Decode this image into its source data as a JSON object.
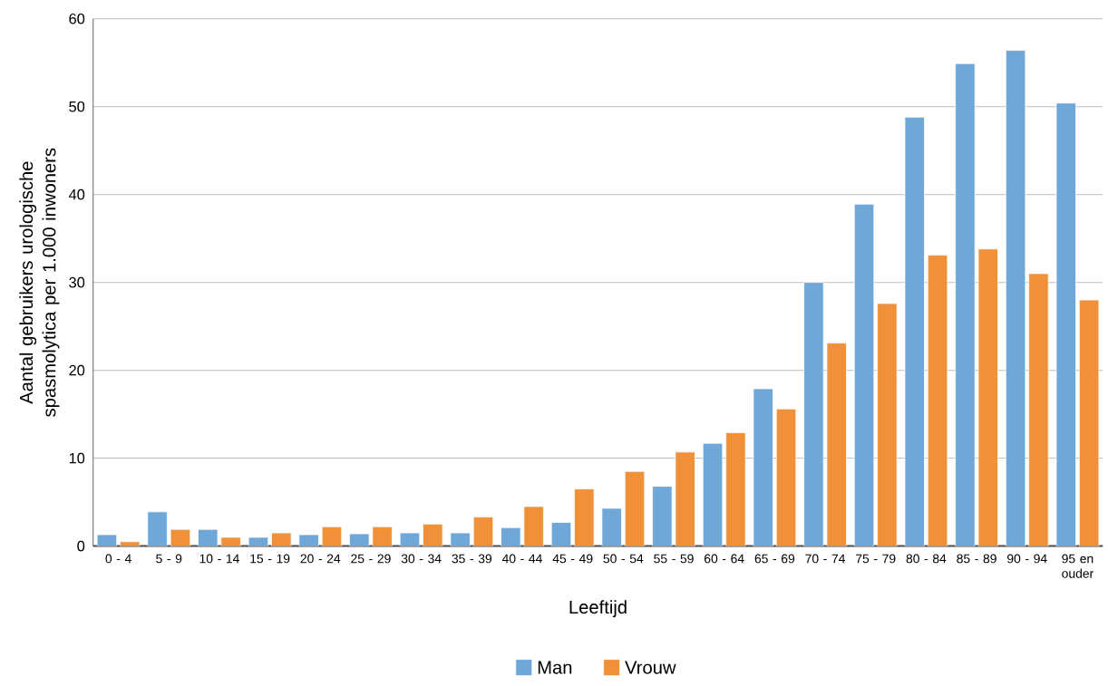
{
  "chart_data": {
    "type": "bar",
    "xlabel": "Leeftijd",
    "ylabel": "Aantal gebruikers urologische spasmolytica per 1.000 inwoners",
    "categories": [
      "0 - 4",
      "5 - 9",
      "10 - 14",
      "15 - 19",
      "20 - 24",
      "25 - 29",
      "30 - 34",
      "35 - 39",
      "40 - 44",
      "45 - 49",
      "50 - 54",
      "55 - 59",
      "60 - 64",
      "65 - 69",
      "70 - 74",
      "75 - 79",
      "80 - 84",
      "85 - 89",
      "90 - 94",
      "95 en ouder"
    ],
    "series": [
      {
        "name": "Man",
        "color": "#6fa8d8",
        "values": [
          1.3,
          3.9,
          1.9,
          1.0,
          1.3,
          1.4,
          1.5,
          1.5,
          2.1,
          2.7,
          4.3,
          6.8,
          11.7,
          17.9,
          30.0,
          38.9,
          48.8,
          54.9,
          56.4,
          50.4
        ]
      },
      {
        "name": "Vrouw",
        "color": "#f0913a",
        "values": [
          0.5,
          1.9,
          1.0,
          1.5,
          2.2,
          2.2,
          2.5,
          3.3,
          4.5,
          6.5,
          8.5,
          10.7,
          12.9,
          15.6,
          23.1,
          27.6,
          33.1,
          33.8,
          31.0,
          28.0
        ]
      }
    ],
    "ylim": [
      0,
      60
    ],
    "yticks": [
      0,
      10,
      20,
      30,
      40,
      50,
      60
    ],
    "grid": "y",
    "legend": "bottom"
  }
}
